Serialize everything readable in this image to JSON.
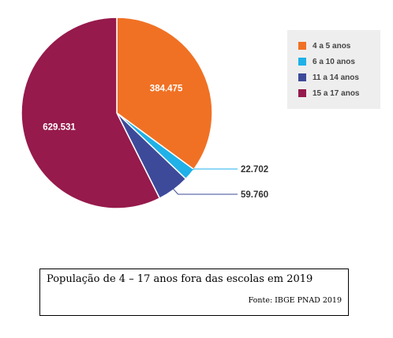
{
  "chart_data": {
    "type": "pie",
    "categories": [
      "4 a 5 anos",
      "6 a 10 anos",
      "11 a 14 anos",
      "15 a 17 anos"
    ],
    "values": [
      384475,
      22702,
      59760,
      629531
    ],
    "value_labels": [
      "384.475",
      "22.702",
      "59.760",
      "629.531"
    ],
    "colors": [
      "#f07124",
      "#1fb1e8",
      "#3d4a9a",
      "#961a4c"
    ],
    "legend_position": "right"
  },
  "legend": {
    "items": [
      {
        "label": "4 a 5 anos",
        "color": "#f07124"
      },
      {
        "label": "6 a 10 anos",
        "color": "#1fb1e8"
      },
      {
        "label": "11 a 14 anos",
        "color": "#3d4a9a"
      },
      {
        "label": "15 a 17 anos",
        "color": "#961a4c"
      }
    ]
  },
  "caption": {
    "title": "População de 4 – 17 anos fora das escolas em 2019",
    "source": "Fonte: IBGE PNAD 2019"
  }
}
